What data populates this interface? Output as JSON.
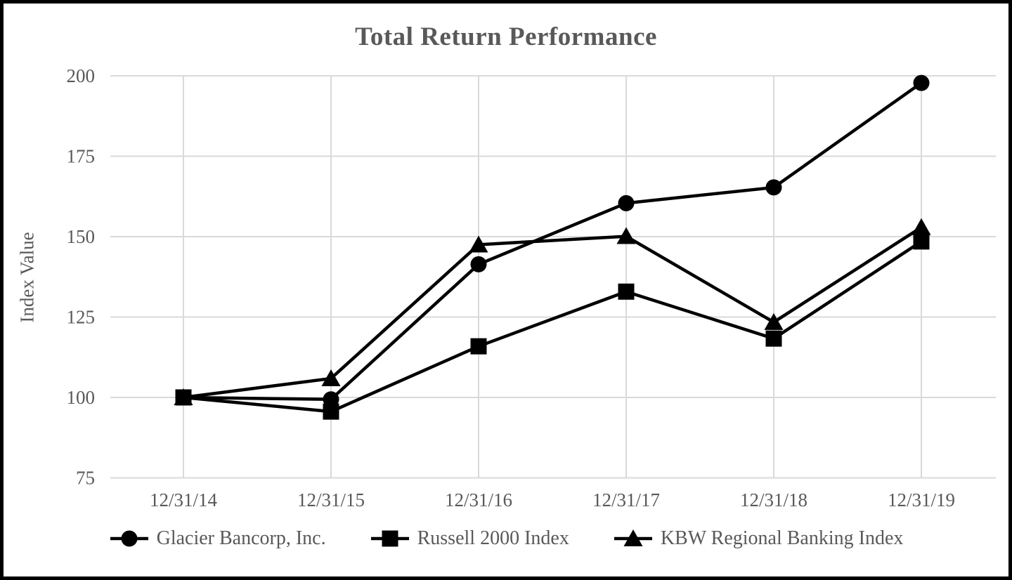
{
  "title": "Total Return Performance",
  "colors": {
    "text": "#595959",
    "gridline": "#d9d9d9",
    "series": "#000000",
    "background": "#ffffff",
    "border": "#000000"
  },
  "chart_data": {
    "type": "line",
    "title": "Total Return Performance",
    "xlabel": "",
    "ylabel": "Index Value",
    "categories": [
      "12/31/14",
      "12/31/15",
      "12/31/16",
      "12/31/17",
      "12/31/18",
      "12/31/19"
    ],
    "y_ticks": [
      200,
      175,
      150,
      125,
      100,
      75
    ],
    "ylim": [
      75,
      200
    ],
    "grid": true,
    "legend_position": "bottom",
    "series": [
      {
        "name": "Glacier Bancorp, Inc.",
        "marker": "circle",
        "values": [
          100.0,
          99.4,
          141.4,
          160.4,
          165.3,
          197.8
        ]
      },
      {
        "name": "Russell 2000 Index",
        "marker": "square",
        "values": [
          100.0,
          95.6,
          115.9,
          132.9,
          118.3,
          148.5
        ]
      },
      {
        "name": "KBW Regional Banking Index",
        "marker": "triangle",
        "values": [
          100.0,
          105.9,
          147.5,
          150.1,
          123.4,
          152.9
        ]
      }
    ]
  }
}
